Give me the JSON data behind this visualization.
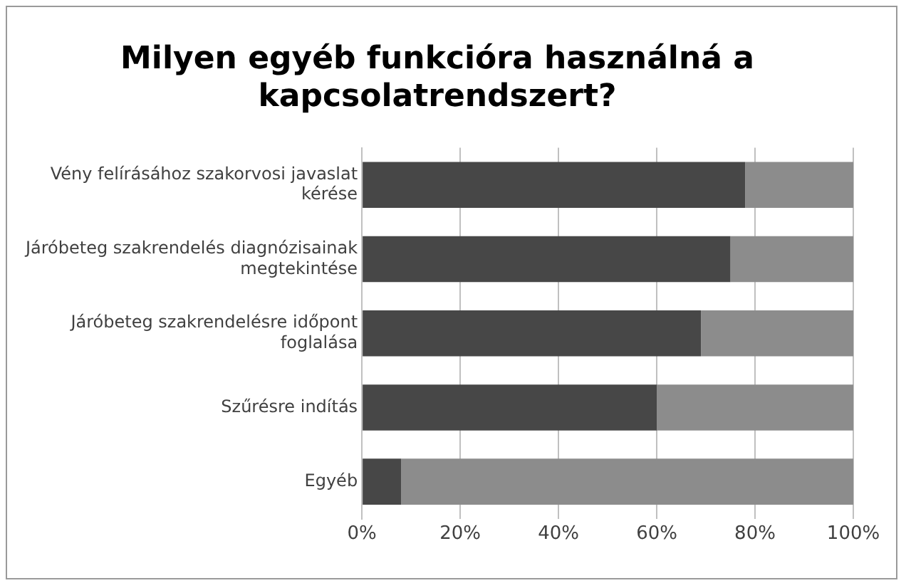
{
  "chart_data": {
    "type": "bar",
    "orientation": "horizontal",
    "stacked": true,
    "title": "Milyen egyéb funkcióra használná a kapcsolatrendszert?",
    "categories": [
      "Vény felírásához szakorvosi javaslat kérése",
      "Járóbeteg szakrendelés diagnózisainak megtekintése",
      "Járóbeteg szakrendelésre időpont foglalása",
      "Szűrésre indítás",
      "Egyéb"
    ],
    "series": [
      {
        "color": "#474747",
        "values": [
          78,
          75,
          69,
          60,
          8
        ]
      },
      {
        "color": "#8c8c8c",
        "values": [
          22,
          25,
          31,
          40,
          92
        ]
      }
    ],
    "xlim": [
      0,
      100
    ],
    "xticks": [
      {
        "value": 0,
        "label": "0%"
      },
      {
        "value": 20,
        "label": "20%"
      },
      {
        "value": 40,
        "label": "40%"
      },
      {
        "value": 60,
        "label": "60%"
      },
      {
        "value": 80,
        "label": "80%"
      },
      {
        "value": 100,
        "label": "100%"
      }
    ],
    "grid": "x",
    "legend": false
  }
}
